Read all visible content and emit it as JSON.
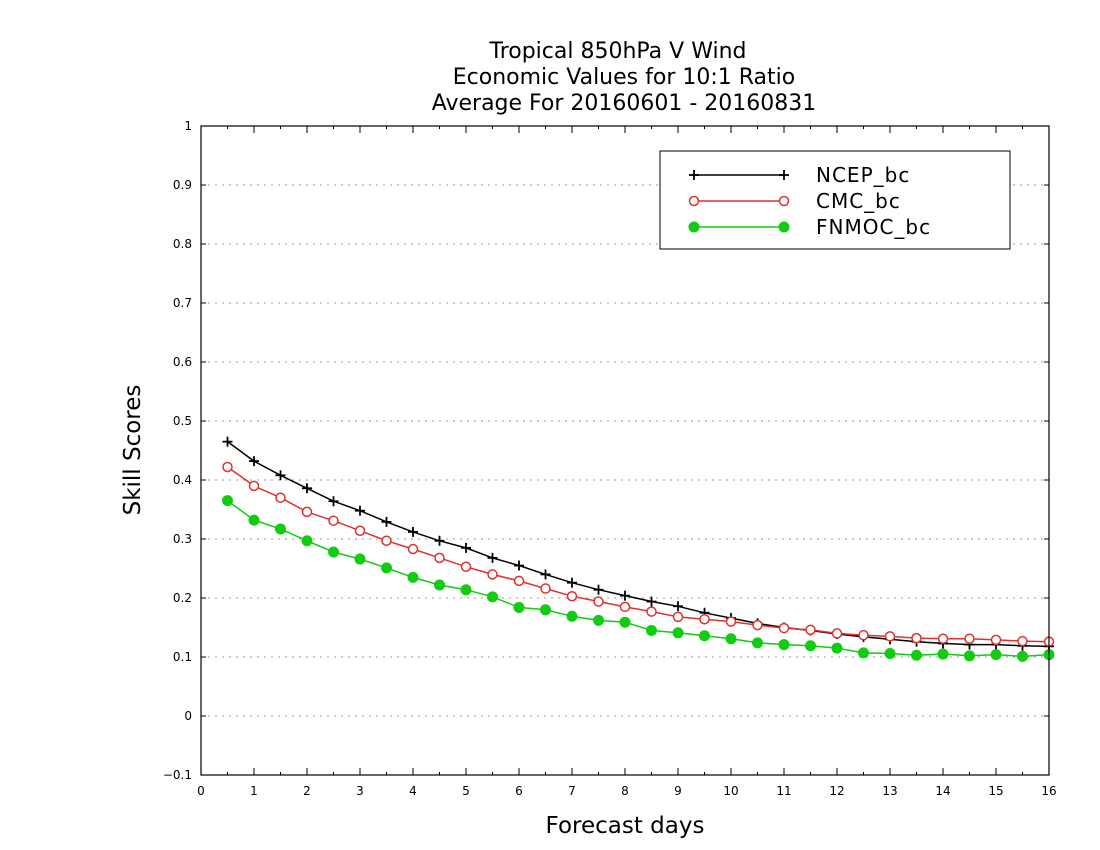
{
  "chart_data": {
    "type": "line",
    "title": [
      "Tropical 850hPa V Wind",
      "Economic Values for 10:1 Ratio",
      "Average For 20160601 - 20160831"
    ],
    "xlabel": "Forecast days",
    "ylabel": "Skill Scores",
    "xlim": [
      0,
      16
    ],
    "ylim": [
      -0.1,
      1
    ],
    "xticks": [
      "0",
      "1",
      "2",
      "3",
      "4",
      "5",
      "6",
      "7",
      "8",
      "9",
      "10",
      "11",
      "12",
      "13",
      "14",
      "15",
      "16"
    ],
    "yticks": [
      "−0.1",
      "0",
      "0.1",
      "0.2",
      "0.3",
      "0.4",
      "0.5",
      "0.6",
      "0.7",
      "0.8",
      "0.9",
      "1"
    ],
    "grid": true,
    "legend_position": "top-right",
    "x": [
      0.5,
      1,
      1.5,
      2,
      2.5,
      3,
      3.5,
      4,
      4.5,
      5,
      5.5,
      6,
      6.5,
      7,
      7.5,
      8,
      8.5,
      9,
      9.5,
      10,
      10.5,
      11,
      11.5,
      12,
      12.5,
      13,
      13.5,
      14,
      14.5,
      15,
      15.5,
      16
    ],
    "series": [
      {
        "name": "NCEP_bc",
        "color": "#000000",
        "marker": "plus",
        "values": [
          0.465,
          0.432,
          0.408,
          0.386,
          0.364,
          0.348,
          0.329,
          0.312,
          0.297,
          0.285,
          0.268,
          0.255,
          0.24,
          0.226,
          0.214,
          0.204,
          0.194,
          0.186,
          0.175,
          0.166,
          0.157,
          0.15,
          0.145,
          0.139,
          0.134,
          0.13,
          0.126,
          0.123,
          0.121,
          0.121,
          0.119,
          0.118
        ]
      },
      {
        "name": "CMC_bc",
        "color": "#e03030",
        "marker": "open-circle",
        "values": [
          0.422,
          0.39,
          0.37,
          0.346,
          0.331,
          0.314,
          0.297,
          0.283,
          0.268,
          0.253,
          0.24,
          0.229,
          0.216,
          0.203,
          0.194,
          0.185,
          0.177,
          0.168,
          0.164,
          0.16,
          0.154,
          0.149,
          0.146,
          0.14,
          0.137,
          0.135,
          0.132,
          0.131,
          0.131,
          0.129,
          0.127,
          0.126
        ]
      },
      {
        "name": "FNMOC_bc",
        "color": "#11cc11",
        "marker": "filled-circle",
        "values": [
          0.365,
          0.332,
          0.317,
          0.297,
          0.278,
          0.266,
          0.251,
          0.235,
          0.222,
          0.214,
          0.202,
          0.184,
          0.18,
          0.169,
          0.162,
          0.159,
          0.145,
          0.141,
          0.136,
          0.131,
          0.124,
          0.121,
          0.119,
          0.115,
          0.107,
          0.106,
          0.103,
          0.105,
          0.102,
          0.104,
          0.101,
          0.104
        ]
      }
    ]
  }
}
